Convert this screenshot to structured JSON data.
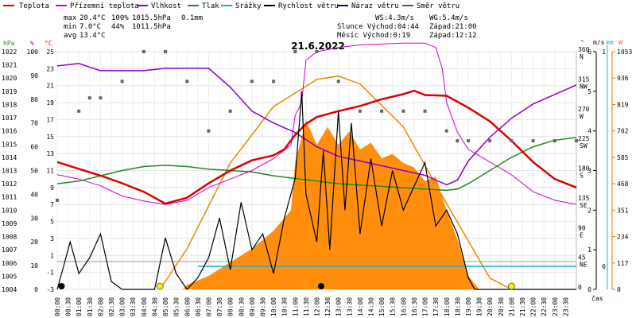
{
  "title": "21.6.2022",
  "legend": [
    {
      "label": "Teplota",
      "color": "#dd0000"
    },
    {
      "label": "Přízemní teplota",
      "color": "#cc00cc"
    },
    {
      "label": "Vlhkost",
      "color": "#8a00c8"
    },
    {
      "label": "Tlak",
      "color": "#228822"
    },
    {
      "label": "Srážky",
      "color": "#22aacc"
    },
    {
      "label": "Rychlost větru",
      "color": "#000000"
    },
    {
      "label": "Náraz větru",
      "color": "#000080"
    },
    {
      "label": "Směr větru",
      "color": "#555555"
    }
  ],
  "stats": {
    "max_label": "max",
    "max_temp": "20.4°C",
    "max_hum": "100%",
    "max_press": "1015.5hPa",
    "max_rain": "0.1mm",
    "min_label": "min",
    "min_temp": "7.0°C",
    "min_hum": "44%",
    "min_press": "1011.5hPa",
    "avg_label": "avg",
    "avg_temp": "13.4°C",
    "ws": "WS:4.3m/s",
    "wg": "WG:5.4m/s",
    "sun": "Slunce Východ:04:44",
    "sun_set": "Západ:21:00",
    "moon": "Měsíc  Východ:0:19",
    "moon_set": "Západ:12:12"
  },
  "axes": {
    "hpa_unit": "hPa",
    "pct_unit": "%",
    "c_unit": "°C",
    "deg_unit": "°",
    "ms_unit": "m/s",
    "mm_unit": "mm",
    "w_unit": "W",
    "xlabel": "čas",
    "hpa_ticks": [
      "1022",
      "1021",
      "1020",
      "1019",
      "1018",
      "1017",
      "1016",
      "1015",
      "1014",
      "1013",
      "1012",
      "1011",
      "1010",
      "1009",
      "1008",
      "1007",
      "1006",
      "1005",
      "1004"
    ],
    "pct_ticks": [
      "100",
      "90",
      "80",
      "70",
      "60",
      "50",
      "40",
      "30",
      "20",
      "10",
      "0"
    ],
    "c_ticks": [
      "25",
      "23",
      "21",
      "19",
      "17",
      "15",
      "13",
      "11",
      "9",
      "7",
      "5",
      "3",
      "1",
      "-1",
      "-3"
    ],
    "deg_ticks": [
      {
        "deg": "360",
        "dir": "N"
      },
      {
        "deg": "315",
        "dir": "NW"
      },
      {
        "deg": "270",
        "dir": "W"
      },
      {
        "deg": "225",
        "dir": "SW"
      },
      {
        "deg": "180",
        "dir": "S"
      },
      {
        "deg": "135",
        "dir": "SE"
      },
      {
        "deg": "90",
        "dir": "E"
      },
      {
        "deg": "45",
        "dir": "NE"
      },
      {
        "deg": "0",
        "dir": ""
      }
    ],
    "ms_ticks": [
      "6",
      "5",
      "4",
      "3",
      "2",
      "1",
      "0"
    ],
    "mm_ticks": [
      "1",
      "0"
    ],
    "w_ticks": [
      "1053",
      "936",
      "819",
      "702",
      "585",
      "468",
      "351",
      "234",
      "117",
      "0"
    ],
    "time_ticks": [
      "00:00",
      "00:30",
      "01:00",
      "01:30",
      "02:00",
      "02:30",
      "03:00",
      "03:30",
      "04:00",
      "04:30",
      "05:00",
      "05:30",
      "06:00",
      "06:30",
      "07:00",
      "07:30",
      "08:00",
      "08:30",
      "09:00",
      "09:30",
      "10:00",
      "10:30",
      "11:00",
      "11:30",
      "12:00",
      "12:30",
      "13:00",
      "13:30",
      "14:00",
      "14:30",
      "15:00",
      "15:30",
      "16:00",
      "16:30",
      "17:00",
      "17:30",
      "18:00",
      "18:30",
      "19:00",
      "19:30",
      "20:00",
      "20:30",
      "21:00",
      "21:30",
      "22:00",
      "22:30",
      "23:00",
      "23:30"
    ]
  },
  "chart_data": {
    "type": "line",
    "x_unit": "hours",
    "temperature": [
      [
        0,
        12.0
      ],
      [
        1,
        11.2
      ],
      [
        2,
        10.4
      ],
      [
        3,
        9.5
      ],
      [
        4,
        8.5
      ],
      [
        5,
        7.1
      ],
      [
        6,
        7.8
      ],
      [
        7,
        9.5
      ],
      [
        8,
        11.0
      ],
      [
        9,
        12.2
      ],
      [
        10,
        12.8
      ],
      [
        10.5,
        13.5
      ],
      [
        11,
        15.2
      ],
      [
        11.5,
        16.5
      ],
      [
        12,
        17.3
      ],
      [
        13,
        18.0
      ],
      [
        14,
        18.6
      ],
      [
        15,
        19.4
      ],
      [
        16,
        20.0
      ],
      [
        16.5,
        20.4
      ],
      [
        17,
        19.9
      ],
      [
        18,
        19.8
      ],
      [
        19,
        18.4
      ],
      [
        20,
        16.8
      ],
      [
        21,
        14.5
      ],
      [
        22,
        12.0
      ],
      [
        23,
        10.0
      ],
      [
        24,
        9.0
      ]
    ],
    "ground_temperature": [
      [
        0,
        10.5
      ],
      [
        1,
        10.0
      ],
      [
        2,
        9.2
      ],
      [
        3,
        8.0
      ],
      [
        4,
        7.4
      ],
      [
        5,
        7.0
      ],
      [
        6,
        7.5
      ],
      [
        7,
        9.0
      ],
      [
        8,
        10.0
      ],
      [
        9,
        11.0
      ],
      [
        10,
        12.4
      ],
      [
        10.8,
        14.0
      ],
      [
        11,
        17.5
      ],
      [
        11.3,
        19.0
      ],
      [
        11.5,
        24.0
      ],
      [
        12,
        25.0
      ],
      [
        13,
        25.5
      ],
      [
        14,
        25.8
      ],
      [
        15,
        25.9
      ],
      [
        16,
        26.0
      ],
      [
        17,
        26.0
      ],
      [
        17.5,
        25.5
      ],
      [
        17.8,
        23.0
      ],
      [
        18,
        19.0
      ],
      [
        18.5,
        15.5
      ],
      [
        19,
        13.5
      ],
      [
        20,
        12.0
      ],
      [
        21,
        10.5
      ],
      [
        22,
        8.5
      ],
      [
        23,
        7.5
      ],
      [
        24,
        7.0
      ]
    ],
    "humidity": [
      [
        0,
        94
      ],
      [
        1,
        95
      ],
      [
        2,
        92
      ],
      [
        3,
        92
      ],
      [
        4,
        92
      ],
      [
        5,
        93
      ],
      [
        6,
        93
      ],
      [
        7,
        93
      ],
      [
        8,
        85
      ],
      [
        9,
        75
      ],
      [
        10,
        70
      ],
      [
        11,
        66
      ],
      [
        12,
        60
      ],
      [
        13,
        56
      ],
      [
        14,
        54
      ],
      [
        15,
        52
      ],
      [
        16,
        50
      ],
      [
        17,
        48
      ],
      [
        17.5,
        46
      ],
      [
        18,
        44
      ],
      [
        18.5,
        46
      ],
      [
        19,
        54
      ],
      [
        20,
        64
      ],
      [
        21,
        72
      ],
      [
        22,
        78
      ],
      [
        23,
        82
      ],
      [
        24,
        86
      ]
    ],
    "pressure": [
      [
        0,
        1012.0
      ],
      [
        1,
        1012.2
      ],
      [
        2,
        1012.6
      ],
      [
        3,
        1013.0
      ],
      [
        4,
        1013.3
      ],
      [
        5,
        1013.4
      ],
      [
        6,
        1013.3
      ],
      [
        7,
        1013.1
      ],
      [
        8,
        1013.0
      ],
      [
        9,
        1012.9
      ],
      [
        10,
        1012.6
      ],
      [
        11,
        1012.4
      ],
      [
        12,
        1012.2
      ],
      [
        13,
        1012.0
      ],
      [
        14,
        1011.9
      ],
      [
        15,
        1011.8
      ],
      [
        16,
        1011.7
      ],
      [
        17,
        1011.6
      ],
      [
        18,
        1011.5
      ],
      [
        18.5,
        1011.6
      ],
      [
        19,
        1012.0
      ],
      [
        20,
        1013.0
      ],
      [
        21,
        1014.0
      ],
      [
        22,
        1014.8
      ],
      [
        23,
        1015.3
      ],
      [
        24,
        1015.5
      ]
    ],
    "wind_speed": [
      [
        0,
        0.0
      ],
      [
        0.3,
        0.6
      ],
      [
        0.6,
        1.2
      ],
      [
        1,
        0.4
      ],
      [
        1.5,
        0.8
      ],
      [
        2,
        1.4
      ],
      [
        2.5,
        0.2
      ],
      [
        3,
        0.0
      ],
      [
        4,
        0.0
      ],
      [
        4.5,
        0.0
      ],
      [
        5,
        1.3
      ],
      [
        5.5,
        0.4
      ],
      [
        6,
        0.0
      ],
      [
        6.5,
        0.3
      ],
      [
        7,
        0.8
      ],
      [
        7.5,
        1.8
      ],
      [
        8,
        0.5
      ],
      [
        8.5,
        2.2
      ],
      [
        9,
        1.0
      ],
      [
        9.5,
        1.4
      ],
      [
        10,
        0.4
      ],
      [
        10.5,
        1.8
      ],
      [
        11,
        2.8
      ],
      [
        11.3,
        5.0
      ],
      [
        11.5,
        2.4
      ],
      [
        12,
        1.2
      ],
      [
        12.3,
        3.5
      ],
      [
        12.6,
        1.0
      ],
      [
        13,
        4.5
      ],
      [
        13.3,
        2.0
      ],
      [
        13.6,
        4.2
      ],
      [
        14,
        1.4
      ],
      [
        14.5,
        3.3
      ],
      [
        15,
        1.6
      ],
      [
        15.5,
        3.0
      ],
      [
        16,
        2.0
      ],
      [
        16.5,
        2.6
      ],
      [
        17,
        3.2
      ],
      [
        17.5,
        1.6
      ],
      [
        18,
        2.0
      ],
      [
        18.5,
        1.4
      ],
      [
        19,
        0.3
      ],
      [
        19.3,
        0.0
      ],
      [
        24,
        0.0
      ]
    ],
    "wind_direction_deg": [
      [
        0,
        135
      ],
      [
        1,
        270
      ],
      [
        1.5,
        290
      ],
      [
        2,
        290
      ],
      [
        3,
        315
      ],
      [
        4,
        360
      ],
      [
        5,
        360
      ],
      [
        6,
        315
      ],
      [
        7,
        240
      ],
      [
        8,
        270
      ],
      [
        9,
        315
      ],
      [
        10,
        315
      ],
      [
        11,
        360
      ],
      [
        12,
        360
      ],
      [
        13,
        315
      ],
      [
        14,
        270
      ],
      [
        15,
        270
      ],
      [
        16,
        270
      ],
      [
        17,
        270
      ],
      [
        18,
        240
      ],
      [
        18.5,
        225
      ],
      [
        19,
        225
      ],
      [
        20,
        225
      ],
      [
        21,
        225
      ],
      [
        22,
        225
      ],
      [
        23,
        225
      ],
      [
        24,
        225
      ]
    ],
    "rain_mm": [
      [
        0,
        0
      ],
      [
        24,
        0
      ]
    ],
    "solar_w": [
      [
        0,
        0
      ],
      [
        5.8,
        0
      ],
      [
        6,
        20
      ],
      [
        7,
        60
      ],
      [
        8,
        120
      ],
      [
        9,
        180
      ],
      [
        10,
        260
      ],
      [
        10.8,
        350
      ],
      [
        11,
        560
      ],
      [
        11.5,
        750
      ],
      [
        12,
        640
      ],
      [
        12.5,
        720
      ],
      [
        13,
        640
      ],
      [
        13.5,
        700
      ],
      [
        14,
        620
      ],
      [
        14.5,
        650
      ],
      [
        15,
        580
      ],
      [
        15.5,
        600
      ],
      [
        16,
        560
      ],
      [
        16.5,
        540
      ],
      [
        17,
        480
      ],
      [
        17.5,
        500
      ],
      [
        18,
        350
      ],
      [
        18.5,
        220
      ],
      [
        19,
        60
      ],
      [
        19.5,
        0
      ],
      [
        24,
        0
      ]
    ],
    "solar_theoretical_w": [
      [
        4.75,
        0
      ],
      [
        6,
        180
      ],
      [
        8,
        560
      ],
      [
        10,
        810
      ],
      [
        12,
        930
      ],
      [
        13,
        945
      ],
      [
        14,
        910
      ],
      [
        16,
        720
      ],
      [
        18,
        380
      ],
      [
        20,
        50
      ],
      [
        21,
        0
      ]
    ],
    "y_ranges": {
      "temp": [
        -3,
        25
      ],
      "humidity": [
        0,
        100
      ],
      "pressure": [
        1004,
        1022
      ],
      "wind_ms": [
        0,
        6
      ],
      "solar_w": [
        0,
        1053
      ],
      "direction_deg": [
        0,
        360
      ]
    }
  }
}
